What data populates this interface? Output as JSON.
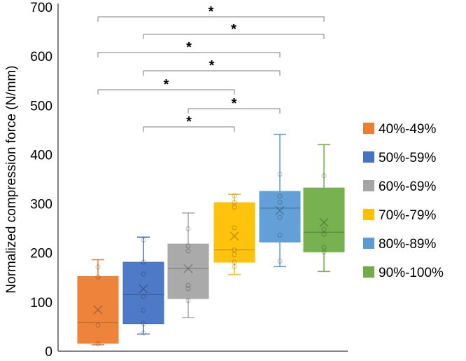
{
  "chart_data": {
    "type": "box",
    "title": "",
    "xlabel": "",
    "ylabel": "Normalized compression force (N/mm)",
    "ylim": [
      0,
      700
    ],
    "yticks": [
      0,
      100,
      200,
      300,
      400,
      500,
      600,
      700
    ],
    "grid": false,
    "legend_position": "right",
    "series": [
      {
        "name": "40%-49%",
        "color": "#ED7D31",
        "whisker_low": 13,
        "q1": 16,
        "median": 58,
        "q3": 152,
        "whisker_high": 186,
        "mean": 84,
        "points": [
          171,
          151,
          53,
          15
        ]
      },
      {
        "name": "50%-59%",
        "color": "#4472C4",
        "whisker_low": 35,
        "q1": 56,
        "median": 115,
        "q3": 181,
        "whisker_high": 232,
        "mean": 127,
        "points": [
          226,
          181,
          157,
          111,
          83,
          56,
          37
        ]
      },
      {
        "name": "60%-69%",
        "color": "#A5A5A5",
        "whisker_low": 68,
        "q1": 107,
        "median": 168,
        "q3": 218,
        "whisker_high": 281,
        "mean": 168,
        "points": [
          249,
          214,
          204,
          134,
          127,
          103
        ]
      },
      {
        "name": "70%-79%",
        "color": "#FFC000",
        "whisker_low": 156,
        "q1": 181,
        "median": 206,
        "q3": 302,
        "whisker_high": 319,
        "mean": 234,
        "points": [
          316,
          303,
          293,
          251,
          206,
          196,
          181,
          172
        ]
      },
      {
        "name": "80%-89%",
        "color": "#5B9BD5",
        "whisker_low": 172,
        "q1": 222,
        "median": 291,
        "q3": 325,
        "whisker_high": 441,
        "mean": 286,
        "points": [
          360,
          315,
          303,
          272,
          236,
          183
        ]
      },
      {
        "name": "90%-100%",
        "color": "#70AD47",
        "whisker_low": 162,
        "q1": 202,
        "median": 242,
        "q3": 332,
        "whisker_high": 420,
        "mean": 262,
        "points": [
          357,
          248,
          238,
          211,
          201
        ]
      }
    ],
    "significance": [
      {
        "from": 0,
        "to": 5,
        "label": "*"
      },
      {
        "from": 1,
        "to": 5,
        "label": "*"
      },
      {
        "from": 0,
        "to": 4,
        "label": "*"
      },
      {
        "from": 1,
        "to": 4,
        "label": "*"
      },
      {
        "from": 0,
        "to": 3,
        "label": "*"
      },
      {
        "from": 2,
        "to": 4,
        "label": "*"
      },
      {
        "from": 1,
        "to": 3,
        "label": "*"
      }
    ]
  }
}
